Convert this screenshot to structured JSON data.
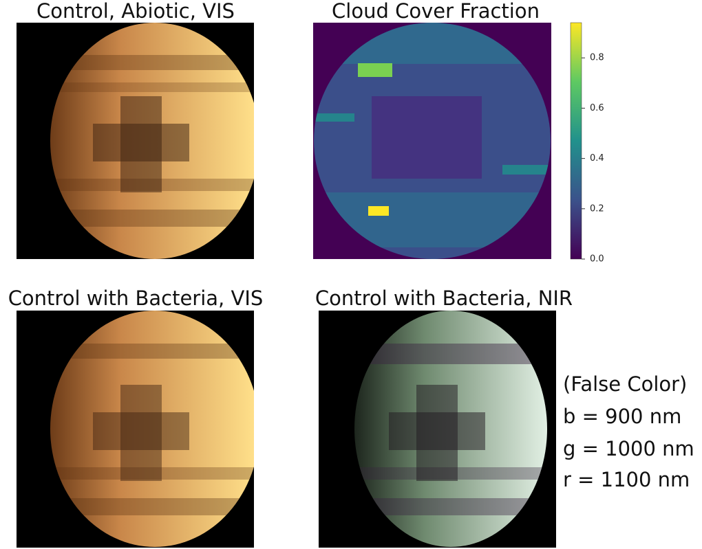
{
  "panels": [
    {
      "title": "Control, Abiotic, VIS"
    },
    {
      "title": "Cloud Cover Fraction"
    },
    {
      "title": "Control with Bacteria, VIS"
    },
    {
      "title": "Control with Bacteria, NIR"
    }
  ],
  "colorbar": {
    "lim": [
      0,
      0.94
    ],
    "ticks": [
      {
        "value": 0,
        "label": "0.0"
      },
      {
        "value": 0.2,
        "label": "0.2"
      },
      {
        "value": 0.4,
        "label": "0.4"
      },
      {
        "value": 0.6,
        "label": "0.6"
      },
      {
        "value": 0.8,
        "label": "0.8"
      }
    ]
  },
  "annotation": [
    "(False Color)",
    "b = 900 nm",
    "g = 1000 nm",
    "r = 1100 nm"
  ]
}
